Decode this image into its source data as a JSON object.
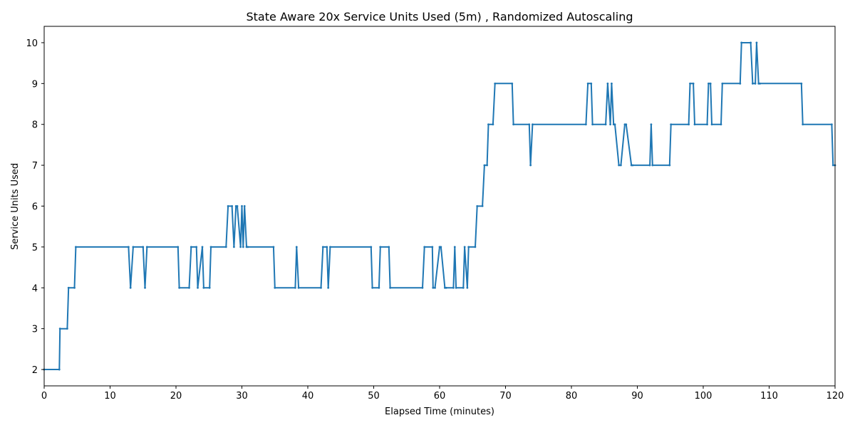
{
  "chart_data": {
    "type": "line",
    "title": "State Aware 20x Service Units Used (5m) , Randomized Autoscaling",
    "xlabel": "Elapsed Time (minutes)",
    "ylabel": "Service Units Used",
    "xlim": [
      0,
      120
    ],
    "ylim": [
      1.6,
      10.4
    ],
    "x_ticks": [
      0,
      10,
      20,
      30,
      40,
      50,
      60,
      70,
      80,
      90,
      100,
      110,
      120
    ],
    "y_ticks": [
      2,
      3,
      4,
      5,
      6,
      7,
      8,
      9,
      10
    ],
    "grid": false,
    "legend": "none",
    "colors": {
      "line": "#1f77b4"
    },
    "series": [
      {
        "x": [
          0.0,
          2.3,
          2.4,
          3.5,
          3.7,
          4.6,
          4.8,
          12.8,
          13.1,
          13.5,
          15.0,
          15.3,
          15.6,
          20.3,
          20.5,
          22.0,
          22.3,
          23.1,
          23.3,
          24.0,
          24.2,
          25.1,
          25.3,
          27.6,
          27.9,
          28.5,
          28.8,
          29.1,
          29.3,
          29.8,
          30.0,
          30.2,
          30.4,
          30.7,
          30.9,
          34.8,
          35.0,
          38.1,
          38.3,
          38.6,
          42.0,
          42.3,
          42.9,
          43.1,
          43.4,
          49.6,
          49.8,
          50.8,
          51.0,
          52.3,
          52.5,
          57.4,
          57.7,
          58.9,
          59.0,
          59.3,
          60.0,
          60.2,
          60.8,
          61.0,
          62.1,
          62.3,
          62.5,
          63.6,
          63.8,
          64.2,
          64.4,
          65.4,
          65.7,
          66.5,
          66.8,
          67.2,
          67.4,
          68.1,
          68.4,
          71.0,
          71.2,
          73.6,
          73.8,
          74.1,
          82.2,
          82.5,
          83.0,
          83.2,
          85.2,
          85.5,
          85.9,
          86.1,
          86.4,
          86.6,
          87.2,
          87.5,
          88.1,
          88.3,
          89.1,
          89.3,
          91.9,
          92.1,
          92.3,
          94.9,
          95.1,
          97.8,
          98.0,
          98.5,
          98.7,
          100.6,
          100.8,
          101.1,
          101.3,
          102.7,
          102.9,
          105.6,
          105.8,
          107.2,
          107.5,
          107.9,
          108.1,
          108.4,
          108.6,
          114.9,
          115.1,
          119.5,
          119.7,
          120.0
        ],
        "y": [
          2,
          2,
          3,
          3,
          4,
          4,
          5,
          5,
          4,
          5,
          5,
          4,
          5,
          5,
          4,
          4,
          5,
          5,
          4,
          5,
          4,
          4,
          5,
          5,
          6,
          6,
          5,
          6,
          6,
          5,
          6,
          5,
          6,
          5,
          5,
          5,
          4,
          4,
          5,
          4,
          4,
          5,
          5,
          4,
          5,
          5,
          4,
          4,
          5,
          5,
          4,
          4,
          5,
          5,
          4,
          4,
          5,
          5,
          4,
          4,
          4,
          5,
          4,
          4,
          5,
          4,
          5,
          5,
          6,
          6,
          7,
          7,
          8,
          8,
          9,
          9,
          8,
          8,
          7,
          8,
          8,
          9,
          9,
          8,
          8,
          9,
          8,
          9,
          8,
          8,
          7,
          7,
          8,
          8,
          7,
          7,
          7,
          8,
          7,
          7,
          8,
          8,
          9,
          9,
          8,
          8,
          9,
          9,
          8,
          8,
          9,
          9,
          10,
          10,
          9,
          9,
          10,
          9,
          9,
          9,
          8,
          8,
          7,
          7
        ]
      }
    ]
  }
}
